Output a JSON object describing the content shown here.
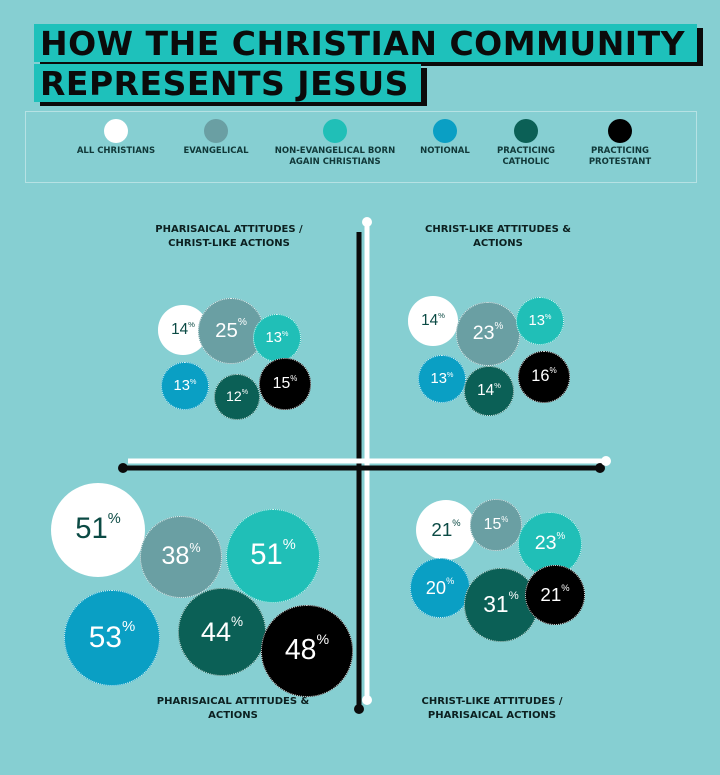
{
  "title": {
    "line1": "HOW THE CHRISTIAN COMMUNITY",
    "line2": "REPRESENTS JESUS"
  },
  "legend": [
    {
      "label": "ALL CHRISTIANS",
      "color": "#ffffff"
    },
    {
      "label": "EVANGELICAL",
      "color": "#6a9fa3"
    },
    {
      "label": "NON-EVANGELICAL BORN AGAIN CHRISTIANS",
      "color": "#20bfb7"
    },
    {
      "label": "NOTIONAL",
      "color": "#0a9fc4"
    },
    {
      "label": "PRACTICING CATHOLIC",
      "color": "#0b6056"
    },
    {
      "label": "PRACTICING PROTESTANT",
      "color": "#000000"
    }
  ],
  "quadrant_labels": {
    "top_left": "PHARISAICAL ATTITUDES / CHRIST-LIKE ACTIONS",
    "top_right": "CHRIST-LIKE ATTITUDES & ACTIONS",
    "bottom_left": "PHARISAICAL ATTITUDES & ACTIONS",
    "bottom_right": "CHRIST-LIKE ATTITUDES / PHARISAICAL ACTIONS"
  },
  "chart_data": {
    "type": "bubble",
    "title": "HOW THE CHRISTIAN COMMUNITY REPRESENTS JESUS",
    "unit": "%",
    "series": [
      "ALL CHRISTIANS",
      "EVANGELICAL",
      "NON-EVANGELICAL BORN AGAIN CHRISTIANS",
      "NOTIONAL",
      "PRACTICING CATHOLIC",
      "PRACTICING PROTESTANT"
    ],
    "quadrants": [
      {
        "label": "PHARISAICAL ATTITUDES / CHRIST-LIKE ACTIONS",
        "values": [
          14,
          25,
          13,
          13,
          12,
          15
        ]
      },
      {
        "label": "CHRIST-LIKE ATTITUDES & ACTIONS",
        "values": [
          14,
          23,
          13,
          13,
          14,
          16
        ]
      },
      {
        "label": "PHARISAICAL ATTITUDES & ACTIONS",
        "values": [
          51,
          38,
          51,
          53,
          44,
          48
        ]
      },
      {
        "label": "CHRIST-LIKE ATTITUDES / PHARISAICAL ACTIONS",
        "values": [
          21,
          15,
          23,
          20,
          31,
          21
        ]
      }
    ]
  }
}
